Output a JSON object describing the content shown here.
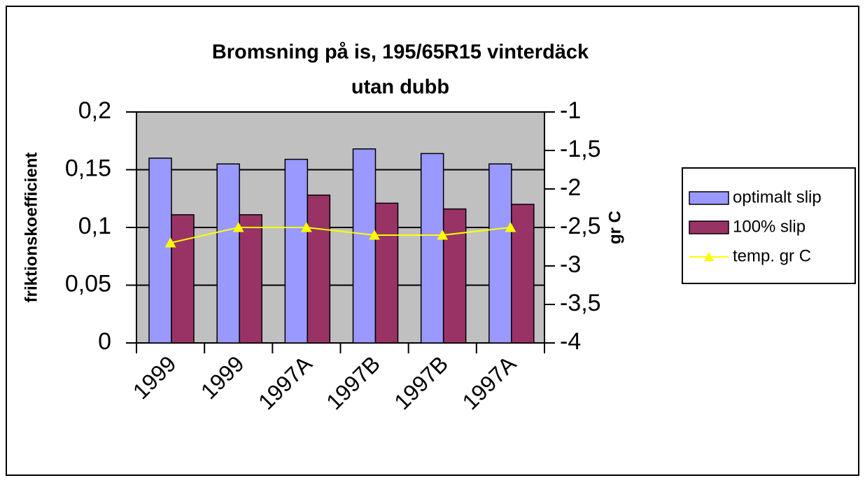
{
  "chart_data": {
    "type": "bar",
    "title": "Bromsning på is, 195/65R15 vinterdäck",
    "subtitle": "utan dubb",
    "y_label": "friktionskoefficient",
    "y2_label": "gr C",
    "categories": [
      "1999",
      "1999",
      "1997A",
      "1997B",
      "1997B",
      "1997A"
    ],
    "series": [
      {
        "name": "optimalt slip",
        "color": "#9999ff",
        "type": "bar",
        "values": [
          0.16,
          0.155,
          0.159,
          0.168,
          0.164,
          0.155
        ]
      },
      {
        "name": "100% slip",
        "color": "#993366",
        "type": "bar",
        "values": [
          0.111,
          0.111,
          0.128,
          0.121,
          0.116,
          0.12
        ]
      },
      {
        "name": "temp. gr C",
        "color": "#ffff00",
        "type": "line",
        "axis": "y2",
        "values": [
          -2.7,
          -2.5,
          -2.5,
          -2.6,
          -2.6,
          -2.5
        ]
      }
    ],
    "ylim": [
      0,
      0.2
    ],
    "yticks": [
      0,
      {
        "value": 0.05,
        "label": "0,05"
      },
      {
        "value": 0.1,
        "label": "0,1"
      },
      {
        "value": 0.15,
        "label": "0,15"
      },
      {
        "value": 0.2,
        "label": "0,2"
      }
    ],
    "y2lim": [
      -4,
      -1
    ],
    "y2ticks": [
      -4,
      {
        "value": -3.5,
        "label": "-3,5"
      },
      -3,
      {
        "value": -2.5,
        "label": "-2,5"
      },
      -2,
      {
        "value": -1.5,
        "label": "-1,5"
      },
      -1
    ],
    "grid": true,
    "plot_background": "#c0c0c0",
    "legend": "right"
  }
}
